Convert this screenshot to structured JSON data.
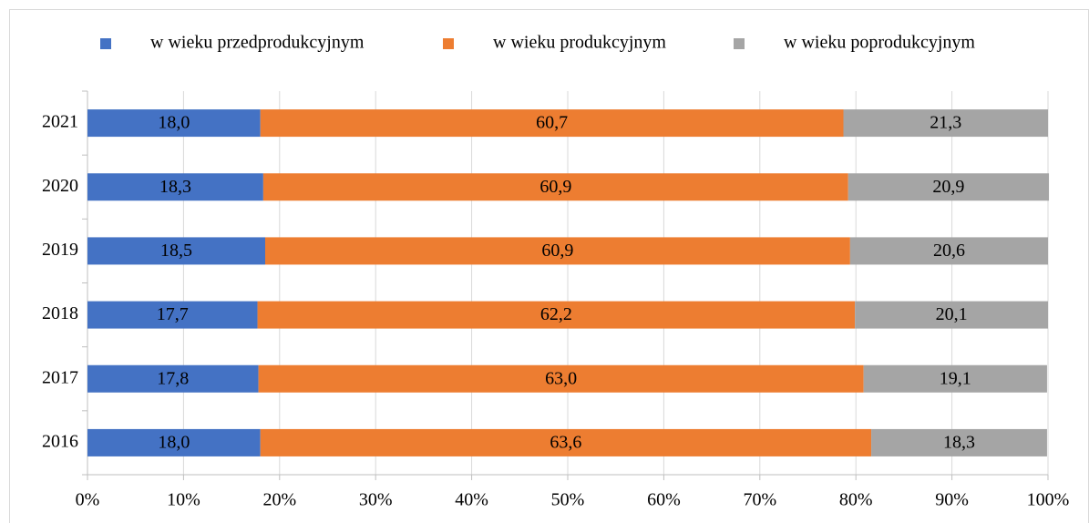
{
  "chart_data": {
    "type": "stacked_barh",
    "categories": [
      "2016",
      "2017",
      "2018",
      "2019",
      "2020",
      "2021"
    ],
    "series": [
      {
        "name": "w wieku przedprodukcyjnym",
        "color": "#4472c4",
        "values": [
          18.0,
          17.8,
          17.7,
          18.5,
          18.3,
          18.0
        ],
        "value_labels": [
          "18,0",
          "17,8",
          "17,7",
          "18,5",
          "18,3",
          "18,0"
        ]
      },
      {
        "name": "w wieku produkcyjnym",
        "color": "#ed7d31",
        "values": [
          63.6,
          63.0,
          62.2,
          60.9,
          60.9,
          60.7
        ],
        "value_labels": [
          "63,6",
          "63,0",
          "62,2",
          "60,9",
          "60,9",
          "60,7"
        ]
      },
      {
        "name": "w wieku poprodukcyjnym",
        "color": "#a5a5a5",
        "values": [
          18.3,
          19.1,
          20.1,
          20.6,
          20.9,
          21.3
        ],
        "value_labels": [
          "18,3",
          "19,1",
          "20,1",
          "20,6",
          "20,9",
          "21,3"
        ]
      }
    ],
    "xlim": [
      0,
      100
    ],
    "xticks": [
      {
        "value": 0,
        "label": "0%"
      },
      {
        "value": 10,
        "label": "10%"
      },
      {
        "value": 20,
        "label": "20%"
      },
      {
        "value": 30,
        "label": "30%"
      },
      {
        "value": 40,
        "label": "40%"
      },
      {
        "value": 50,
        "label": "50%"
      },
      {
        "value": 60,
        "label": "60%"
      },
      {
        "value": 70,
        "label": "70%"
      },
      {
        "value": 80,
        "label": "80%"
      },
      {
        "value": 90,
        "label": "90%"
      },
      {
        "value": 100,
        "label": "100%"
      }
    ],
    "grid": true,
    "legend": "top"
  }
}
